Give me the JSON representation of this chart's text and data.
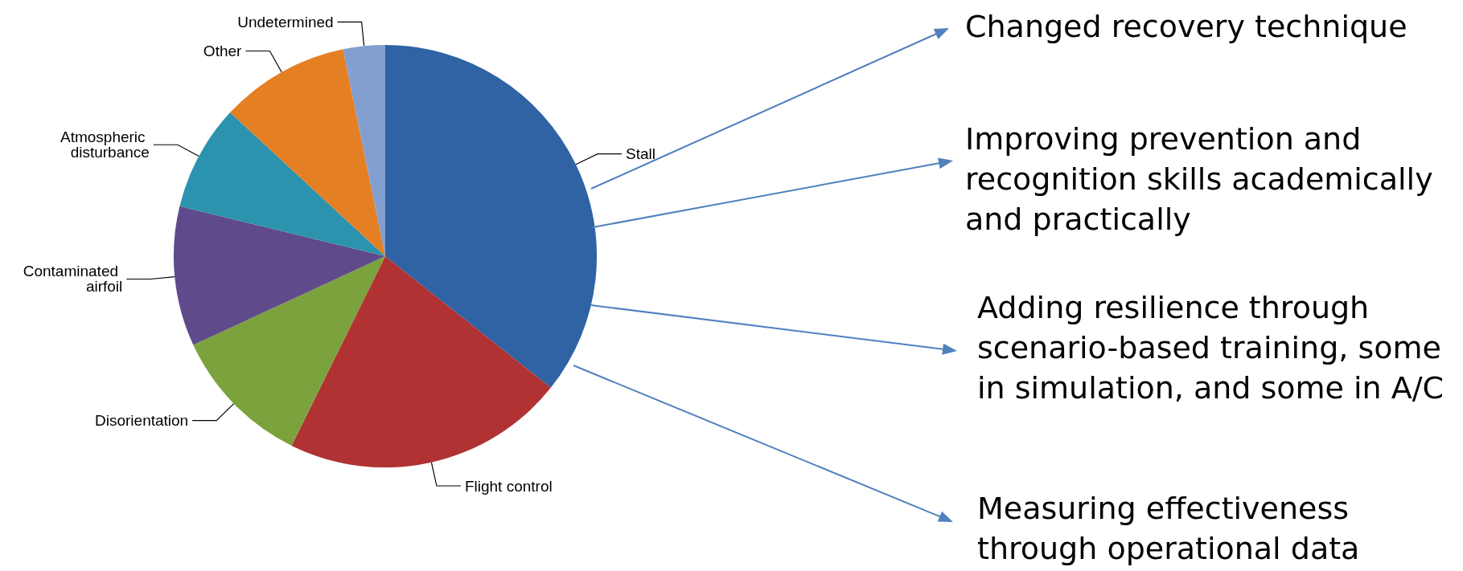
{
  "chart_data": {
    "type": "pie",
    "categories": [
      "Stall",
      "Flight control",
      "Disorientation",
      "Contaminated airfoil",
      "Atmospheric disturbance",
      "Other",
      "Undetermined"
    ],
    "values": [
      35.7,
      21.6,
      10.8,
      10.7,
      8.1,
      9.9,
      3.2
    ],
    "colors": [
      "#2f63a3",
      "#b03232",
      "#7ba23c",
      "#5f4b8b",
      "#2b93ad",
      "#e57f24",
      "#829fcf"
    ],
    "legend": false,
    "annotations": [
      "Changed recovery technique",
      "Improving prevention and recognition skills academically and practically",
      "Adding resilience through scenario-based training, some in simulation, and some in A/C",
      "Measuring effectiveness through operational data"
    ]
  }
}
